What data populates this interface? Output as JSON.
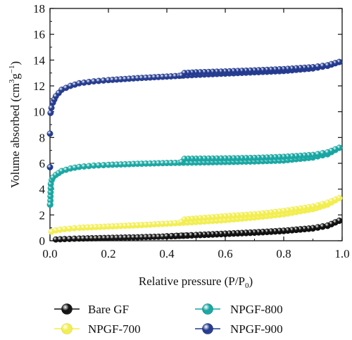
{
  "chart_data": {
    "type": "line",
    "xlabel": "Relative pressure (P/P",
    "xlabel_sub": "0",
    "xlabel_tail": ")",
    "ylabel": "Volume absorbed (cm",
    "ylabel_sup1": "3",
    "ylabel_mid": "g",
    "ylabel_sup2": "−1",
    "ylabel_tail": ")",
    "xlim": [
      0.0,
      1.0
    ],
    "ylim": [
      0,
      18
    ],
    "xticks": [
      "0.0",
      "0.2",
      "0.4",
      "0.6",
      "0.8",
      "1.0"
    ],
    "yticks": [
      "0",
      "2",
      "4",
      "6",
      "8",
      "10",
      "12",
      "14",
      "16",
      "18"
    ],
    "legend_placement": "bottom, two columns",
    "marker": "sphere",
    "series": [
      {
        "name": "Bare GF",
        "color": "#111111",
        "adsorption": {
          "x": [
            0.02,
            0.05,
            0.1,
            0.2,
            0.3,
            0.4,
            0.5,
            0.6,
            0.7,
            0.8,
            0.9,
            0.95,
            0.99
          ],
          "y": [
            0.1,
            0.13,
            0.17,
            0.22,
            0.27,
            0.33,
            0.42,
            0.52,
            0.62,
            0.75,
            0.95,
            1.15,
            1.55
          ]
        },
        "desorption": {
          "x": [
            0.99,
            0.95,
            0.9,
            0.8,
            0.7,
            0.6,
            0.5,
            0.45,
            0.4
          ],
          "y": [
            1.55,
            1.18,
            0.98,
            0.78,
            0.65,
            0.55,
            0.45,
            0.4,
            0.35
          ]
        }
      },
      {
        "name": "NPGF-700",
        "color": "#f2ee4f",
        "adsorption": {
          "x": [
            0.005,
            0.02,
            0.05,
            0.1,
            0.2,
            0.3,
            0.4,
            0.5,
            0.6,
            0.7,
            0.8,
            0.9,
            0.95,
            0.99
          ],
          "y": [
            0.7,
            0.8,
            0.9,
            1.0,
            1.1,
            1.2,
            1.32,
            1.45,
            1.6,
            1.8,
            2.05,
            2.45,
            2.8,
            3.3
          ]
        },
        "desorption": {
          "x": [
            0.99,
            0.95,
            0.9,
            0.8,
            0.7,
            0.6,
            0.5,
            0.46,
            0.45
          ],
          "y": [
            3.3,
            2.95,
            2.65,
            2.3,
            2.05,
            1.9,
            1.72,
            1.65,
            1.45
          ]
        }
      },
      {
        "name": "NPGF-800",
        "color": "#17a6a2",
        "adsorption": {
          "x": [
            0.001,
            0.003,
            0.006,
            0.01,
            0.02,
            0.04,
            0.07,
            0.1,
            0.15,
            0.2,
            0.3,
            0.4,
            0.5,
            0.6,
            0.7,
            0.8,
            0.9,
            0.95,
            0.99
          ],
          "y": [
            2.8,
            4.4,
            4.7,
            4.9,
            5.1,
            5.4,
            5.6,
            5.72,
            5.82,
            5.88,
            5.96,
            6.02,
            6.06,
            6.1,
            6.14,
            6.22,
            6.45,
            6.7,
            7.2
          ]
        },
        "desorption": {
          "x": [
            0.99,
            0.95,
            0.9,
            0.8,
            0.7,
            0.6,
            0.5,
            0.46,
            0.45
          ],
          "y": [
            7.2,
            6.85,
            6.65,
            6.5,
            6.42,
            6.38,
            6.36,
            6.35,
            6.1
          ]
        },
        "low_pressure": {
          "x": [
            0.0,
            0.0
          ],
          "y": [
            2.8,
            5.7
          ]
        }
      },
      {
        "name": "NPGF-900",
        "color": "#233a8f",
        "adsorption": {
          "x": [
            0.002,
            0.005,
            0.01,
            0.02,
            0.04,
            0.07,
            0.1,
            0.15,
            0.2,
            0.3,
            0.4,
            0.5,
            0.6,
            0.7,
            0.8,
            0.9,
            0.95,
            0.99
          ],
          "y": [
            9.9,
            10.3,
            10.7,
            11.2,
            11.7,
            12.0,
            12.2,
            12.35,
            12.45,
            12.6,
            12.72,
            12.85,
            12.95,
            13.05,
            13.15,
            13.35,
            13.55,
            13.85
          ]
        },
        "desorption": {
          "x": [
            0.99,
            0.95,
            0.9,
            0.8,
            0.7,
            0.6,
            0.5,
            0.46,
            0.45
          ],
          "y": [
            13.85,
            13.6,
            13.45,
            13.3,
            13.2,
            13.12,
            13.05,
            13.0,
            12.8
          ]
        },
        "low_pressure": {
          "x": [
            0.0,
            0.0
          ],
          "y": [
            5.7,
            8.3
          ]
        }
      }
    ]
  }
}
